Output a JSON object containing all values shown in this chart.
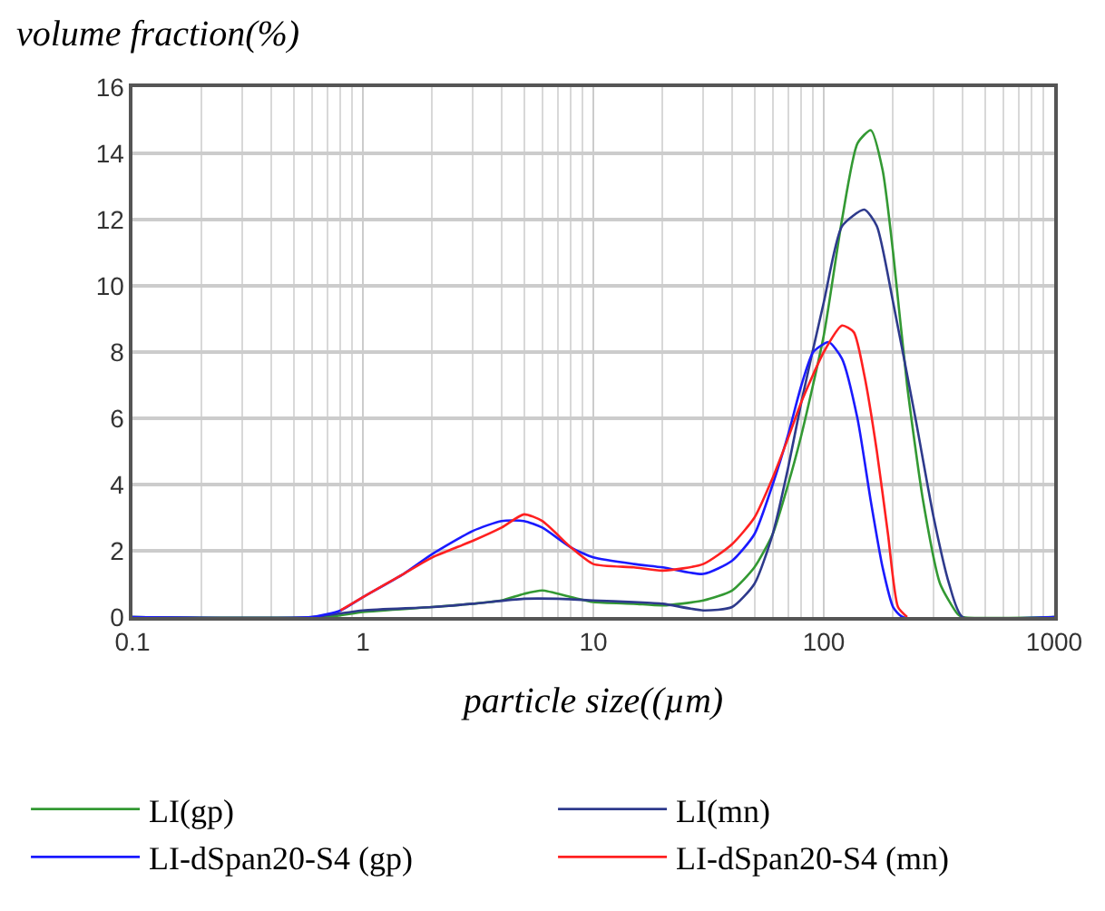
{
  "chart_data": {
    "type": "line",
    "xlabel": "particle size((µm)",
    "ylabel": "volume fraction(%)",
    "log": "x",
    "grid": true,
    "legend": "bottom",
    "marker": "none",
    "line_style": "solid",
    "xlim": [
      0.1,
      1000
    ],
    "xticks": [
      0.1,
      1,
      10,
      100,
      1000
    ],
    "ylim": [
      0,
      16
    ],
    "yticks": [
      0,
      2,
      4,
      6,
      8,
      10,
      12,
      14,
      16
    ],
    "series": [
      {
        "name": "LI(gp)",
        "color": "#339933",
        "x": [
          0.1,
          0.7,
          1,
          2,
          3,
          4,
          5,
          6,
          8,
          10,
          15,
          20,
          30,
          40,
          50,
          60,
          70,
          80,
          100,
          120,
          140,
          160,
          180,
          200,
          230,
          270,
          320,
          380,
          400,
          1000
        ],
        "values": [
          0,
          0,
          0.15,
          0.3,
          0.4,
          0.5,
          0.7,
          0.8,
          0.6,
          0.45,
          0.4,
          0.35,
          0.5,
          0.8,
          1.5,
          2.5,
          4,
          5.5,
          8.5,
          12,
          14.3,
          14.7,
          13.5,
          11,
          7,
          3.5,
          1,
          0.1,
          0,
          0
        ]
      },
      {
        "name": "LI(mn)",
        "color": "#2e3a8c",
        "x": [
          0.1,
          0.6,
          1,
          2,
          3,
          5,
          7,
          10,
          15,
          20,
          30,
          40,
          50,
          60,
          70,
          80,
          100,
          120,
          150,
          170,
          200,
          250,
          300,
          350,
          400,
          1000
        ],
        "values": [
          0,
          0,
          0.2,
          0.3,
          0.4,
          0.55,
          0.55,
          0.5,
          0.45,
          0.4,
          0.2,
          0.3,
          1,
          2.5,
          4.5,
          6.5,
          9.5,
          11.8,
          12.3,
          11.8,
          9.5,
          6,
          3,
          1,
          0,
          0
        ]
      },
      {
        "name": "LI-dSpan20-S4 (gp)",
        "color": "#1a1aff",
        "x": [
          0.1,
          0.6,
          0.8,
          1,
          1.5,
          2,
          3,
          4,
          5,
          6,
          8,
          10,
          15,
          20,
          30,
          40,
          50,
          60,
          70,
          80,
          90,
          105,
          120,
          140,
          160,
          180,
          200,
          220,
          1000
        ],
        "values": [
          0,
          0,
          0.2,
          0.6,
          1.3,
          1.9,
          2.6,
          2.9,
          2.9,
          2.7,
          2.1,
          1.8,
          1.6,
          1.5,
          1.3,
          1.7,
          2.5,
          4,
          5.5,
          7,
          8,
          8.3,
          7.8,
          6,
          3.5,
          1.5,
          0.3,
          0,
          0
        ]
      },
      {
        "name": "LI-dSpan20-S4 (mn)",
        "color": "#ff2020",
        "x": [
          0.8,
          1,
          1.5,
          2,
          3,
          4,
          5,
          6,
          8,
          10,
          15,
          20,
          30,
          40,
          50,
          60,
          70,
          80,
          100,
          120,
          135,
          150,
          170,
          190,
          210,
          230
        ],
        "values": [
          0.2,
          0.6,
          1.3,
          1.8,
          2.3,
          2.7,
          3.1,
          2.9,
          2.1,
          1.6,
          1.5,
          1.4,
          1.6,
          2.2,
          3,
          4.2,
          5.4,
          6.5,
          8,
          8.8,
          8.6,
          7.3,
          5,
          2.5,
          0.3,
          0
        ]
      }
    ]
  }
}
